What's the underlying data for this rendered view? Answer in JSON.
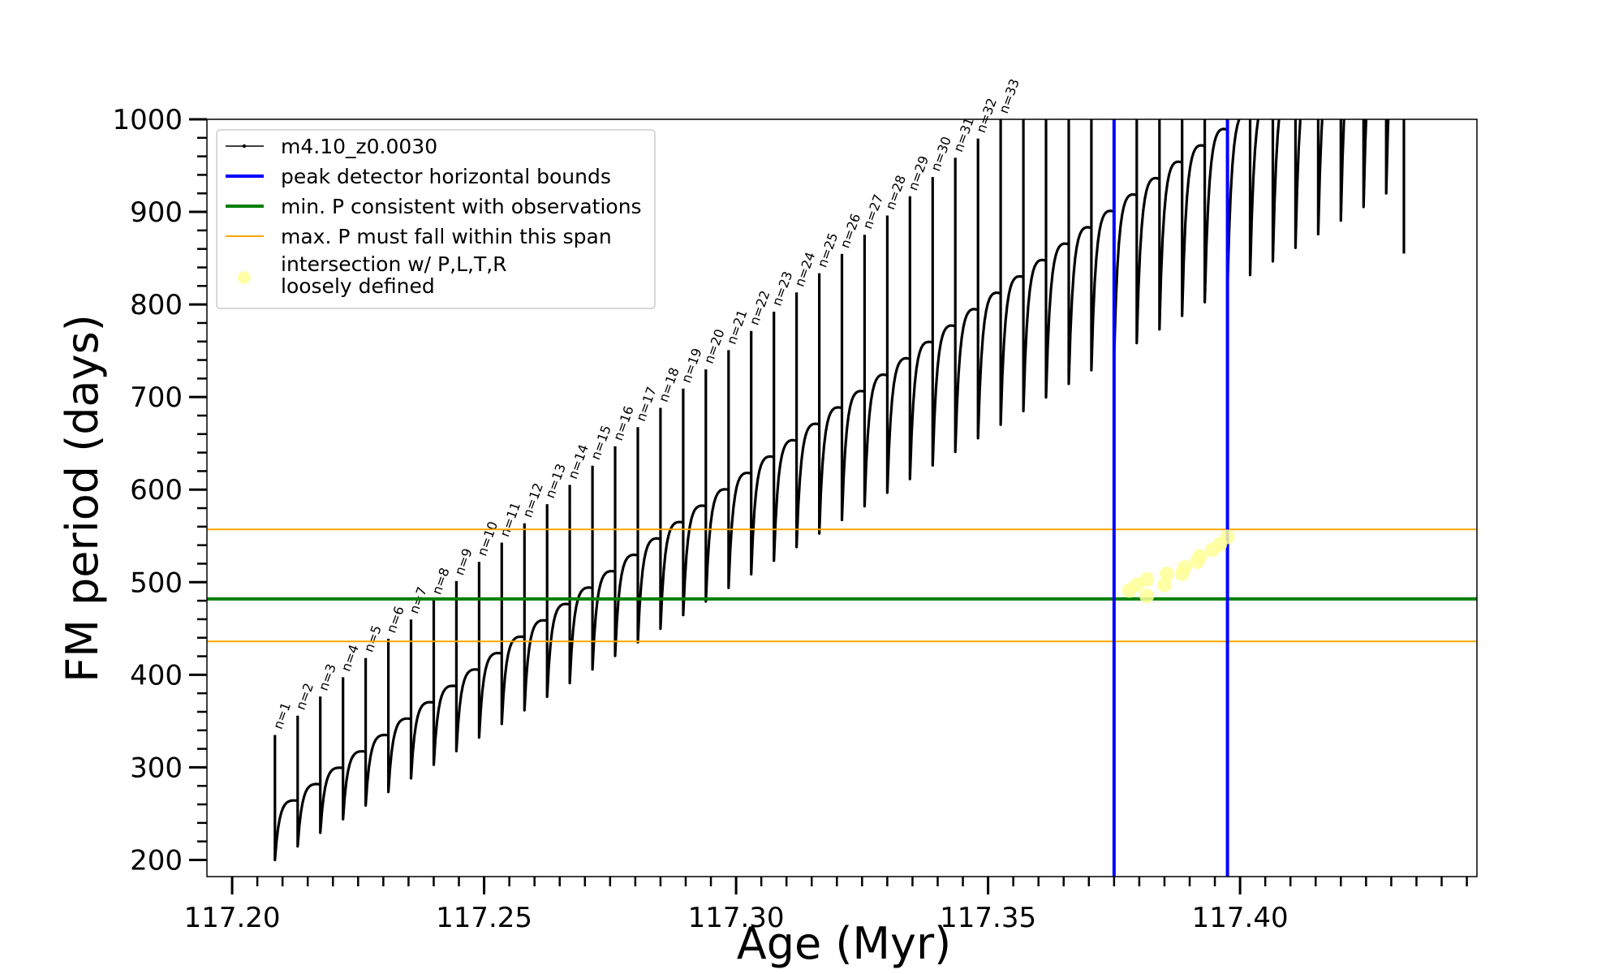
{
  "chart_data": {
    "type": "line",
    "xlabel": "Age (Myr)",
    "ylabel": "FM period (days)",
    "xlim": [
      117.195,
      117.447
    ],
    "ylim": [
      182,
      1000
    ],
    "xticks": [
      117.2,
      117.25,
      117.3,
      117.35,
      117.4
    ],
    "xtick_labels": [
      "117.20",
      "117.25",
      "117.30",
      "117.35",
      "117.40"
    ],
    "xminor_step": 0.005,
    "yticks": [
      200,
      300,
      400,
      500,
      600,
      700,
      800,
      900,
      1000
    ],
    "ytick_labels": [
      "200",
      "300",
      "400",
      "500",
      "600",
      "700",
      "800",
      "900",
      "1000"
    ],
    "yminor_step": 20,
    "grid": false,
    "legend_position": "top-left",
    "legend": [
      {
        "label": "m4.10_z0.0030",
        "color": "#000000",
        "style": "line-marker"
      },
      {
        "label": "peak detector horizontal bounds",
        "color": "#0000ff",
        "style": "line"
      },
      {
        "label": "min. P consistent with observations",
        "color": "#008000",
        "style": "line"
      },
      {
        "label": "max. P must fall within this span",
        "color": "#ffa500",
        "style": "thin-line"
      },
      {
        "label_lines": [
          "intersection w/ P,L,T,R",
          "loosely defined"
        ],
        "color": "#ffff99",
        "style": "marker"
      }
    ],
    "series": [
      {
        "name": "m4.10_z0.0030",
        "color": "#000000",
        "pulse_spacing": 0.0045,
        "first_pulse_age": 117.2085,
        "pulse_count": 50,
        "trend_start": [
          117.2085,
          200
        ],
        "trend_end": [
          117.4275,
          920
        ],
        "pulse_amplitude_start": 70,
        "pulse_amplitude_end": 230,
        "spike_start_height": 335,
        "spike_end_height": 1000,
        "last_segment_end": [
          117.4325,
          855
        ]
      }
    ],
    "pulse_labels": [
      "n=1",
      "n=2",
      "n=3",
      "n=4",
      "n=5",
      "n=6",
      "n=7",
      "n=8",
      "n=9",
      "n=10",
      "n=11",
      "n=12",
      "n=13",
      "n=14",
      "n=15",
      "n=16",
      "n=17",
      "n=18",
      "n=19",
      "n=20",
      "n=21",
      "n=22",
      "n=23",
      "n=24",
      "n=25",
      "n=26",
      "n=27",
      "n=28",
      "n=29",
      "n=30",
      "n=31",
      "n=32",
      "n=33"
    ],
    "vertical_lines": [
      {
        "x": 117.375,
        "color": "#0000ff"
      },
      {
        "x": 117.3975,
        "color": "#0000ff"
      }
    ],
    "horizontal_lines": [
      {
        "y": 482,
        "color": "#008000",
        "width": 4
      },
      {
        "y": 557,
        "color": "#ffa500",
        "width": 2
      },
      {
        "y": 436,
        "color": "#ffa500",
        "width": 2
      }
    ],
    "intersection_points": [
      {
        "x": 117.378,
        "y": 491
      },
      {
        "x": 117.3795,
        "y": 497
      },
      {
        "x": 117.3815,
        "y": 485
      },
      {
        "x": 117.3815,
        "y": 503
      },
      {
        "x": 117.385,
        "y": 497
      },
      {
        "x": 117.3855,
        "y": 509
      },
      {
        "x": 117.3885,
        "y": 509
      },
      {
        "x": 117.389,
        "y": 516
      },
      {
        "x": 117.3915,
        "y": 522
      },
      {
        "x": 117.392,
        "y": 528
      },
      {
        "x": 117.3945,
        "y": 535
      },
      {
        "x": 117.396,
        "y": 541
      },
      {
        "x": 117.3975,
        "y": 549
      }
    ]
  }
}
